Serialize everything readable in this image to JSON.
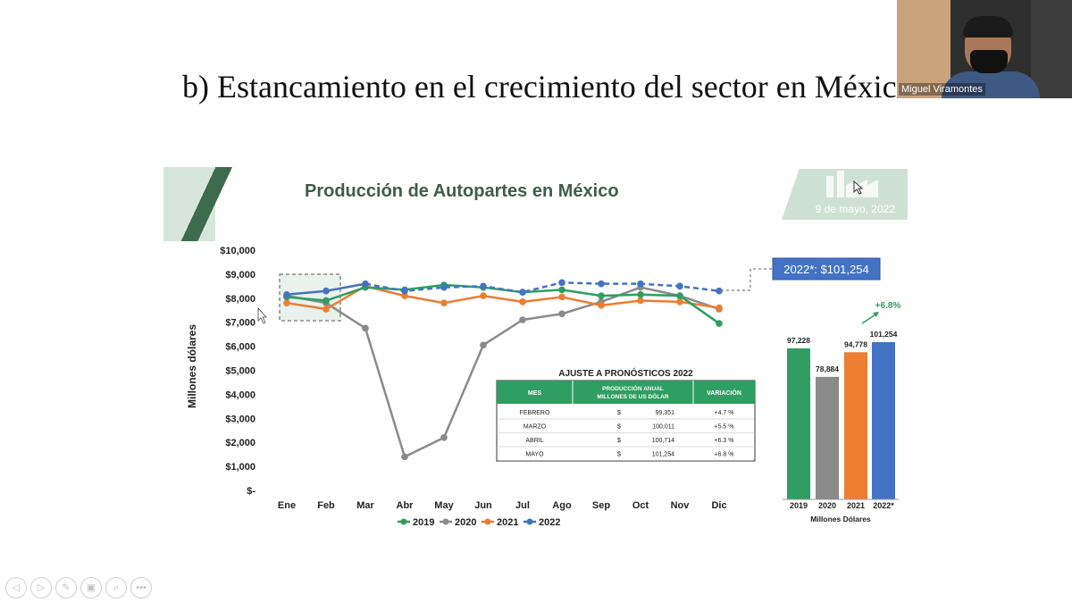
{
  "slide_heading": "b) Estancamiento en el crecimiento del sector en México",
  "video": {
    "participant_name": "Miguel Viramontes"
  },
  "inner_slide": {
    "title": "Producción de Autopartes en México",
    "date": "9 de mayo, 2022"
  },
  "nav_icons": [
    "back-icon",
    "forward-icon",
    "pen-icon",
    "slides-icon",
    "zoom-icon",
    "more-icon"
  ],
  "colors": {
    "2019": "#2e9e62",
    "2020": "#8a8a8a",
    "2021": "#ed7d31",
    "2022": "#4472c4",
    "table_header": "#2e9e62"
  },
  "chart_data": [
    {
      "type": "line",
      "ylabel": "Millones dólares",
      "ylim": [
        0,
        10000
      ],
      "yticks": [
        "$-",
        "$1,000",
        "$2,000",
        "$3,000",
        "$4,000",
        "$5,000",
        "$6,000",
        "$7,000",
        "$8,000",
        "$9,000",
        "$10,000"
      ],
      "categories": [
        "Ene",
        "Feb",
        "Mar",
        "Abr",
        "May",
        "Jun",
        "Jul",
        "Ago",
        "Sep",
        "Oct",
        "Nov",
        "Dic"
      ],
      "series": [
        {
          "name": "2019",
          "values": [
            8050,
            7900,
            8450,
            8350,
            8550,
            8450,
            8250,
            8350,
            8100,
            8150,
            8100,
            6950
          ]
        },
        {
          "name": "2020",
          "values": [
            8100,
            7800,
            6750,
            1400,
            2200,
            6050,
            7100,
            7350,
            7850,
            8450,
            8100,
            7550
          ]
        },
        {
          "name": "2021",
          "values": [
            7800,
            7550,
            8500,
            8100,
            7800,
            8100,
            7850,
            8050,
            7700,
            7900,
            7850,
            7600
          ]
        },
        {
          "name": "2022",
          "values": [
            8150,
            8300,
            8600,
            8300,
            8450,
            8500,
            8250,
            8650,
            8600,
            8600,
            8500,
            8300
          ],
          "projected_from": "Mar"
        }
      ],
      "callout": "2022*: $101,254"
    },
    {
      "type": "table",
      "title": "AJUSTE A PRONÓSTICOS 2022",
      "headers": [
        "MES",
        "PRODUCCIÓN ANUAL MILLONES DE US DÓLAR",
        "VARIACIÓN"
      ],
      "rows": [
        [
          "FEBRERO",
          "$",
          "99,351",
          "+4.7 %"
        ],
        [
          "MARZO",
          "$",
          "100,011",
          "+5.5 %"
        ],
        [
          "ABRIL",
          "$",
          "100,714",
          "+6.3 %"
        ],
        [
          "MAYO",
          "$",
          "101,254",
          "+6.8 %"
        ]
      ]
    },
    {
      "type": "bar",
      "categories": [
        "2019",
        "2020",
        "2021",
        "2022*"
      ],
      "values": [
        97228,
        78884,
        94778,
        101254
      ],
      "labels": [
        "97,228",
        "78,884",
        "94,778",
        "101,254"
      ],
      "xlabel": "Millones Dólares",
      "annotation": "+6.8%"
    }
  ]
}
